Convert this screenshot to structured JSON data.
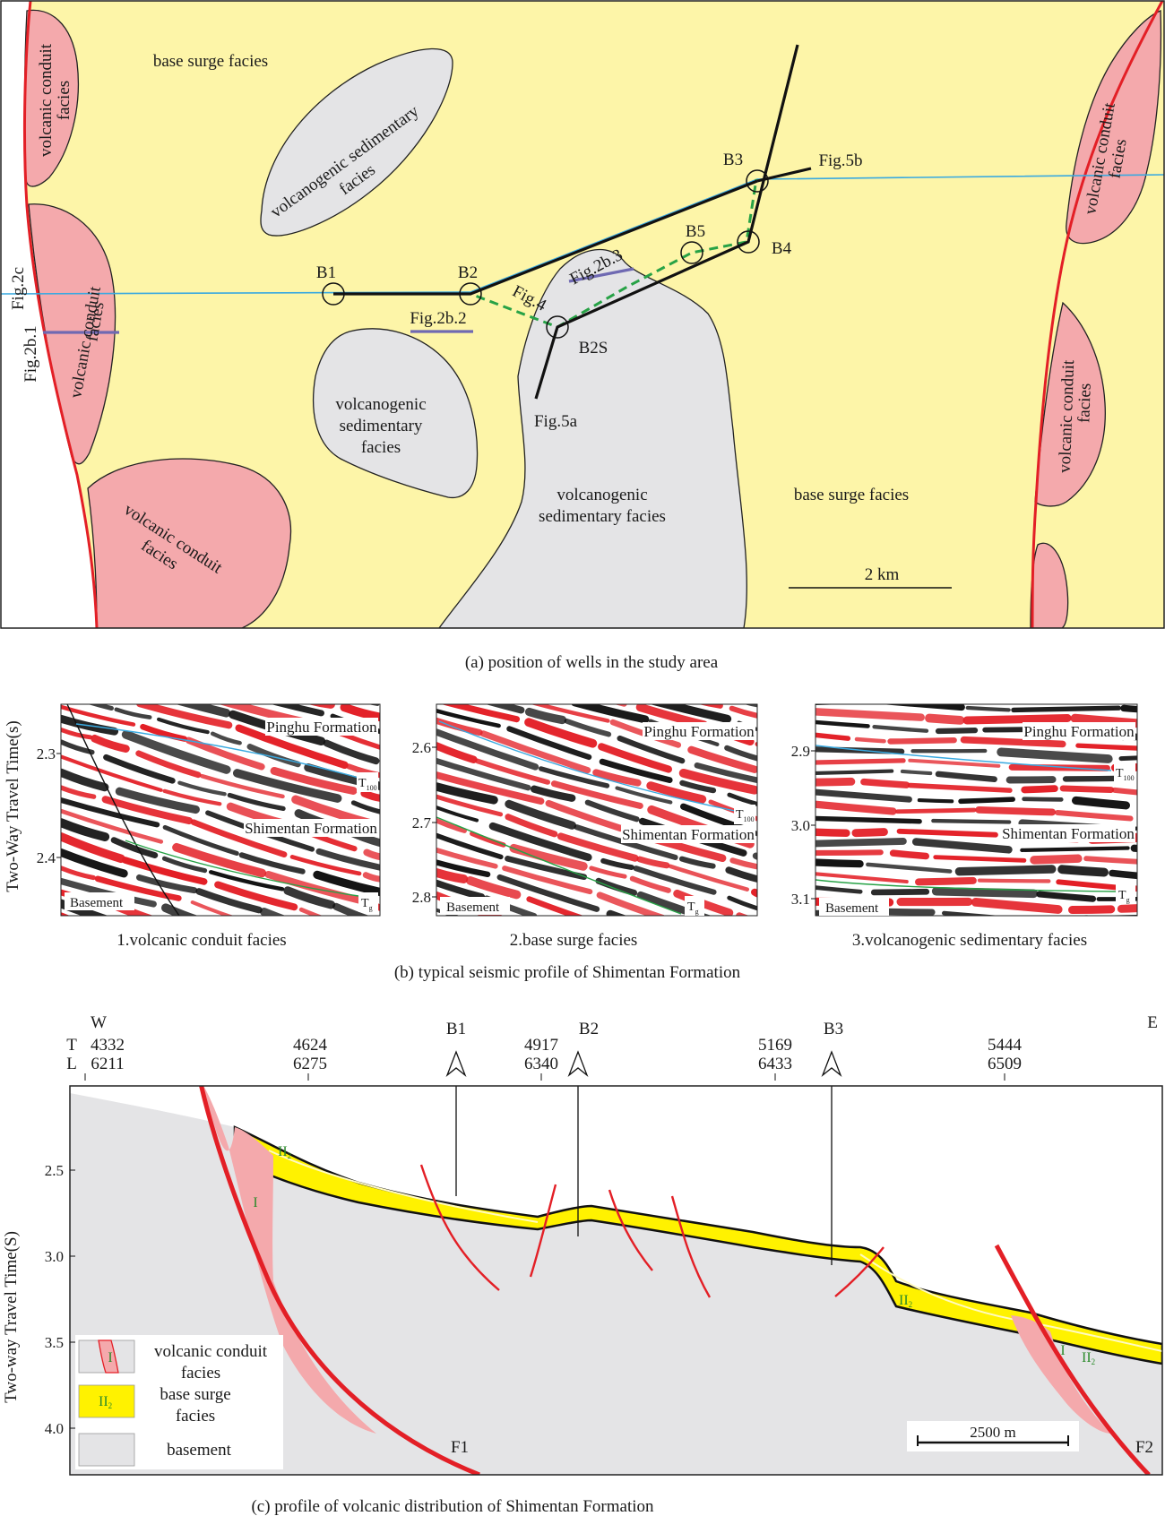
{
  "panel_a": {
    "caption": "(a) position of wells in the study area",
    "facies_labels": {
      "base_surge_top": "base surge facies",
      "base_surge_bottom": "base surge facies",
      "vs_top": "volcanogenic sedimentary",
      "vs_top_2": "facies",
      "vs_middle_1": "volcanogenic",
      "vs_middle_2": "sedimentary",
      "vs_middle_3": "facies",
      "vs_bottom_1": "volcanogenic",
      "vs_bottom_2": "sedimentary facies",
      "vc_left_top_1": "volcanic conduit",
      "vc_left_top_2": "facies",
      "vc_left_mid_1": "volcanic conduit",
      "vc_left_mid_2": "facies",
      "vc_bottom_left_1": "volcanic conduit",
      "vc_bottom_left_2": "facies",
      "vc_right_top_1": "volcanic conduit",
      "vc_right_top_2": "facies",
      "vc_right_mid_1": "volcanic conduit",
      "vc_right_mid_2": "facies"
    },
    "wells": [
      "B1",
      "B2",
      "B2S",
      "B3",
      "B4",
      "B5"
    ],
    "profile_labels": {
      "fig2c": "Fig.2c",
      "fig2b1": "Fig.2b.1",
      "fig2b2": "Fig.2b.2",
      "fig2b3": "Fig.2b.3",
      "fig4": "Fig.4",
      "fig5a": "Fig.5a",
      "fig5b": "Fig.5b"
    },
    "scale_bar": "2 km",
    "colors": {
      "base_surge": "#fdf5a8",
      "volcanogenic_sedimentary": "#e4e4e6",
      "volcanic_conduit": "#f4a9ac",
      "fault": "#e31f26",
      "seismic_line": "#39a9e0",
      "well_path": "#27a246",
      "seismic_profile": "#6f69b2"
    }
  },
  "panel_b": {
    "caption": "(b) typical seismic profile of Shimentan Formation",
    "y_axis_label": "Two-Way Travel Time(s)",
    "sections": [
      {
        "title": "1.volcanic conduit facies",
        "ticks": [
          "2.3",
          "2.4"
        ],
        "labels": {
          "top": "Pinghu Formation",
          "mid": "Shimentan Formation",
          "base": "Basement",
          "t100": "T",
          "t100_sub": "100",
          "tg": "T",
          "tg_sub": "g"
        }
      },
      {
        "title": "2.base surge facies",
        "ticks": [
          "2.6",
          "2.7",
          "2.8"
        ],
        "labels": {
          "top": "Pinghu Formation",
          "mid": "Shimentan Formation",
          "base": "Basement",
          "t100": "T",
          "t100_sub": "100",
          "tg": "T",
          "tg_sub": "g"
        }
      },
      {
        "title": "3.volcanogenic sedimentary facies",
        "ticks": [
          "2.9",
          "3.0",
          "3.1"
        ],
        "labels": {
          "top": "Pinghu Formation",
          "mid": "Shimentan Formation",
          "base": "Basement",
          "t100": "T",
          "t100_sub": "100",
          "tg": "T",
          "tg_sub": "g"
        }
      }
    ],
    "colors": {
      "positive": "#e31f26",
      "negative": "#111111",
      "t100": "#39a9e0",
      "tg": "#27a246"
    }
  },
  "panel_c": {
    "caption": "(c) profile of volcanic distribution of Shimentan Formation",
    "west": "W",
    "east": "E",
    "row_t": "T",
    "row_l": "L",
    "ticks_top": [
      {
        "t": "4332",
        "l": "6211"
      },
      {
        "t": "4624",
        "l": "6275"
      },
      {
        "t": "4917",
        "l": "6340"
      },
      {
        "t": "5169",
        "l": "6433"
      },
      {
        "t": "5444",
        "l": "6509"
      }
    ],
    "wells": [
      "B1",
      "B2",
      "B3"
    ],
    "y_axis_label": "Two-way  Travel Time(S)",
    "y_ticks": [
      "2.5",
      "3.0",
      "3.5",
      "4.0"
    ],
    "faults": [
      "F1",
      "F2"
    ],
    "facies_marks": {
      "i": "I",
      "ii": "II",
      "ii_sub": "2"
    },
    "legend": {
      "conduit_1": "volcanic conduit",
      "conduit_2": "facies",
      "surge_1": "base surge",
      "surge_2": "facies",
      "basement": "basement"
    },
    "scale_bar": "2500 m",
    "colors": {
      "basement": "#e4e4e6",
      "base_surge": "#fff200",
      "conduit": "#f4a9ac",
      "fault": "#e31f26"
    }
  }
}
